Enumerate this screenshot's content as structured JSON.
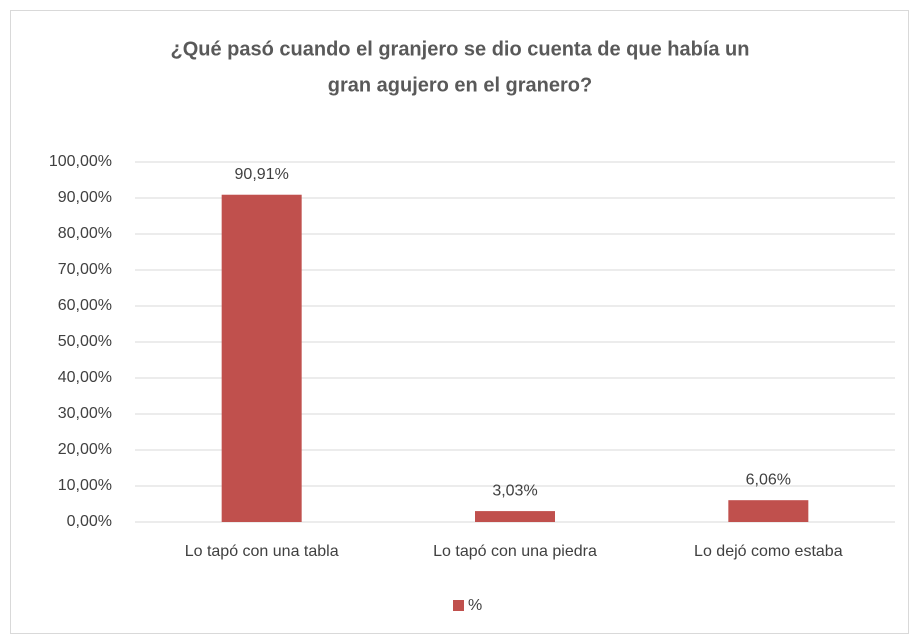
{
  "chart_data": {
    "type": "bar",
    "title": [
      "¿Qué pasó cuando el granjero se dio cuenta de que había un",
      "gran agujero en el granero?"
    ],
    "categories": [
      "Lo tapó con una tabla",
      "Lo tapó con una piedra",
      "Lo dejó como estaba"
    ],
    "series": [
      {
        "name": "%",
        "color": "#c0504d",
        "values": [
          90.91,
          3.03,
          6.06
        ],
        "value_labels": [
          "90,91%",
          "3,03%",
          "6,06%"
        ]
      }
    ],
    "ylim": [
      0,
      100
    ],
    "yticks": [
      {
        "value": 0,
        "label": "0,00%"
      },
      {
        "value": 10,
        "label": "10,00%"
      },
      {
        "value": 20,
        "label": "20,00%"
      },
      {
        "value": 30,
        "label": "30,00%"
      },
      {
        "value": 40,
        "label": "40,00%"
      },
      {
        "value": 50,
        "label": "50,00%"
      },
      {
        "value": 60,
        "label": "60,00%"
      },
      {
        "value": 70,
        "label": "70,00%"
      },
      {
        "value": 80,
        "label": "80,00%"
      },
      {
        "value": 90,
        "label": "90,00%"
      },
      {
        "value": 100,
        "label": "100,00%"
      }
    ],
    "grid": true,
    "legend": "bottom"
  }
}
